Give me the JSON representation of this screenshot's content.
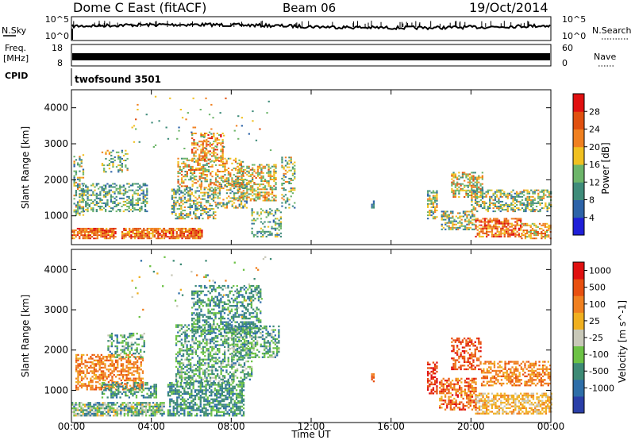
{
  "header": {
    "station": "Dome C East (fitACF)",
    "beam": "Beam 06",
    "date": "19/Oct/2014"
  },
  "top_panels": {
    "nsky_label": "N.Sky",
    "nsky_ticks": [
      "10^5",
      "10^0"
    ],
    "nsearch_label": "N.Search",
    "nsearch_ticks": [
      "10^5",
      "10^0"
    ],
    "freq_label": "Freq.",
    "freq_unit": "[MHz]",
    "freq_ticks": [
      "18",
      "8"
    ],
    "nave_label": "Nave",
    "nave_ticks": [
      "60",
      "0"
    ],
    "cpid_label": "CPID",
    "cpid_value": "twofsound 3501"
  },
  "chart_data": [
    {
      "type": "heatmap",
      "name": "power",
      "ylabel": "Slant Range [km]",
      "yticks": [
        1000,
        2000,
        3000,
        4000
      ],
      "ylim": [
        200,
        4500
      ],
      "xlim_hours": [
        0,
        24
      ],
      "colorbar_label": "Power [dB]",
      "colorbar_ticks": [
        "4",
        "8",
        "12",
        "16",
        "20",
        "24",
        "28"
      ],
      "colorbar_colors": [
        "#1f1fd8",
        "#2d63a8",
        "#3f8c7a",
        "#6db56a",
        "#f0c020",
        "#f08020",
        "#e05010",
        "#e01010"
      ]
    },
    {
      "type": "heatmap",
      "name": "velocity",
      "ylabel": "Slant Range [km]",
      "yticks": [
        1000,
        2000,
        3000,
        4000
      ],
      "ylim": [
        200,
        4500
      ],
      "xlim_hours": [
        0,
        24
      ],
      "colorbar_label": "Velocity [m s^-1]",
      "colorbar_ticks": [
        "1000",
        "500",
        "100",
        "25",
        "-25",
        "-100",
        "-500",
        "-1000"
      ],
      "colorbar_colors": [
        "#2a3fa8",
        "#2e6ea8",
        "#3d8a75",
        "#6cc245",
        "#c8c8b8",
        "#f0b020",
        "#f08020",
        "#e85010",
        "#e01010"
      ]
    }
  ],
  "x_axis": {
    "ticks": [
      "00:00",
      "04:00",
      "08:00",
      "12:00",
      "16:00",
      "20:00",
      "00:00"
    ],
    "label": "Time UT"
  }
}
